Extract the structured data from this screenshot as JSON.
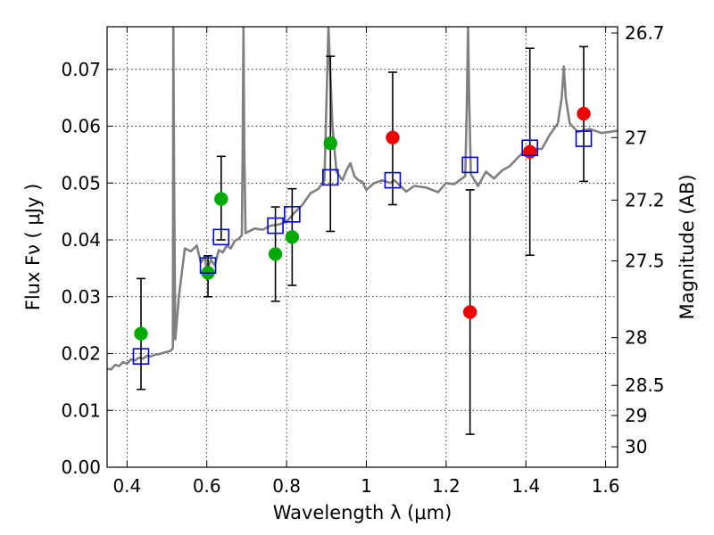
{
  "chart_data": {
    "type": "scatter",
    "title": "",
    "xlabel": "Wavelength  λ (μm)",
    "ylabel": "Flux  Fν  ( μJy )",
    "y2label": "Magnitude (AB)",
    "xlim": [
      0.35,
      1.63
    ],
    "ylim": [
      0.0,
      0.0775
    ],
    "grid": true,
    "x_ticks": [
      0.4,
      0.6,
      0.8,
      1,
      1.2,
      1.4,
      1.6
    ],
    "x_tick_labels": [
      "0.4",
      "0.6",
      "0.8",
      "1",
      "1.2",
      "1.4",
      "1.6"
    ],
    "y_ticks": [
      0,
      0.01,
      0.02,
      0.03,
      0.04,
      0.05,
      0.06,
      0.07
    ],
    "y_tick_labels": [
      "0.00",
      "0.01",
      "0.02",
      "0.03",
      "0.04",
      "0.05",
      "0.06",
      "0.07"
    ],
    "y2_ticks": [
      {
        "label": "26.7",
        "flux": 0.0764
      },
      {
        "label": "27",
        "flux": 0.058
      },
      {
        "label": "27.2",
        "flux": 0.047
      },
      {
        "label": "27.5",
        "flux": 0.0363
      },
      {
        "label": "28",
        "flux": 0.0228
      },
      {
        "label": "28.5",
        "flux": 0.0144
      },
      {
        "label": "29",
        "flux": 0.0091
      },
      {
        "label": "30",
        "flux": 0.0036
      }
    ],
    "colors": {
      "spectrum": "#808080",
      "green_points": "#00aa00",
      "red_points": "#ee0000",
      "model_squares": "#0000cc",
      "errorbars": "#000000",
      "grid": "#000000"
    },
    "series": [
      {
        "kind": "line",
        "color": "spectrum",
        "points": [
          [
            0.35,
            0.0173
          ],
          [
            0.36,
            0.0172
          ],
          [
            0.37,
            0.018
          ],
          [
            0.38,
            0.0178
          ],
          [
            0.39,
            0.0185
          ],
          [
            0.4,
            0.0182
          ],
          [
            0.41,
            0.019
          ],
          [
            0.42,
            0.0188
          ],
          [
            0.43,
            0.0193
          ],
          [
            0.44,
            0.0191
          ],
          [
            0.45,
            0.0196
          ],
          [
            0.46,
            0.0195
          ],
          [
            0.47,
            0.0198
          ],
          [
            0.48,
            0.0199
          ],
          [
            0.49,
            0.0201
          ],
          [
            0.5,
            0.0203
          ],
          [
            0.51,
            0.0205
          ],
          [
            0.515,
            0.021
          ],
          [
            0.516,
            0.0775
          ],
          [
            0.518,
            0.05
          ],
          [
            0.521,
            0.0225
          ],
          [
            0.53,
            0.03
          ],
          [
            0.545,
            0.0385
          ],
          [
            0.56,
            0.038
          ],
          [
            0.575,
            0.039
          ],
          [
            0.585,
            0.036
          ],
          [
            0.595,
            0.037
          ],
          [
            0.6,
            0.0345
          ],
          [
            0.61,
            0.0365
          ],
          [
            0.62,
            0.0355
          ],
          [
            0.63,
            0.0382
          ],
          [
            0.64,
            0.0378
          ],
          [
            0.65,
            0.039
          ],
          [
            0.66,
            0.0385
          ],
          [
            0.67,
            0.0398
          ],
          [
            0.68,
            0.0402
          ],
          [
            0.688,
            0.0408
          ],
          [
            0.69,
            0.056
          ],
          [
            0.692,
            0.0775
          ],
          [
            0.694,
            0.056
          ],
          [
            0.697,
            0.0412
          ],
          [
            0.72,
            0.042
          ],
          [
            0.74,
            0.0418
          ],
          [
            0.76,
            0.0425
          ],
          [
            0.78,
            0.0427
          ],
          [
            0.8,
            0.0432
          ],
          [
            0.82,
            0.0448
          ],
          [
            0.84,
            0.0462
          ],
          [
            0.86,
            0.0482
          ],
          [
            0.88,
            0.049
          ],
          [
            0.895,
            0.0505
          ],
          [
            0.905,
            0.0775
          ],
          [
            0.915,
            0.06
          ],
          [
            0.925,
            0.052
          ],
          [
            0.94,
            0.0505
          ],
          [
            0.95,
            0.0522
          ],
          [
            0.96,
            0.0535
          ],
          [
            0.97,
            0.0512
          ],
          [
            0.98,
            0.0505
          ],
          [
            0.99,
            0.0502
          ],
          [
            1.0,
            0.0488
          ],
          [
            1.02,
            0.05
          ],
          [
            1.04,
            0.0505
          ],
          [
            1.06,
            0.05
          ],
          [
            1.07,
            0.0505
          ],
          [
            1.1,
            0.0485
          ],
          [
            1.12,
            0.0495
          ],
          [
            1.15,
            0.0492
          ],
          [
            1.18,
            0.0484
          ],
          [
            1.2,
            0.05
          ],
          [
            1.22,
            0.0498
          ],
          [
            1.24,
            0.0508
          ],
          [
            1.248,
            0.0512
          ],
          [
            1.252,
            0.064
          ],
          [
            1.255,
            0.0775
          ],
          [
            1.258,
            0.064
          ],
          [
            1.262,
            0.0515
          ],
          [
            1.28,
            0.0495
          ],
          [
            1.3,
            0.052
          ],
          [
            1.32,
            0.0508
          ],
          [
            1.34,
            0.0522
          ],
          [
            1.36,
            0.053
          ],
          [
            1.38,
            0.0545
          ],
          [
            1.4,
            0.0558
          ],
          [
            1.42,
            0.056
          ],
          [
            1.44,
            0.056
          ],
          [
            1.46,
            0.0585
          ],
          [
            1.48,
            0.0605
          ],
          [
            1.49,
            0.065
          ],
          [
            1.495,
            0.0705
          ],
          [
            1.5,
            0.065
          ],
          [
            1.51,
            0.0605
          ],
          [
            1.53,
            0.059
          ],
          [
            1.56,
            0.0595
          ],
          [
            1.59,
            0.0588
          ],
          [
            1.63,
            0.0592
          ]
        ]
      },
      {
        "kind": "points",
        "marker": "circle",
        "color": "green_points",
        "points": [
          {
            "x": 0.435,
            "y": 0.0235,
            "lo": 0.0137,
            "hi": 0.0332
          },
          {
            "x": 0.603,
            "y": 0.0342,
            "lo": 0.03,
            "hi": 0.0372
          },
          {
            "x": 0.636,
            "y": 0.0472,
            "lo": 0.04,
            "hi": 0.0547
          },
          {
            "x": 0.772,
            "y": 0.0375,
            "lo": 0.0292,
            "hi": 0.0458
          },
          {
            "x": 0.814,
            "y": 0.0405,
            "lo": 0.032,
            "hi": 0.049
          },
          {
            "x": 0.91,
            "y": 0.057,
            "lo": 0.0415,
            "hi": 0.0723
          }
        ]
      },
      {
        "kind": "points",
        "marker": "circle",
        "color": "red_points",
        "points": [
          {
            "x": 1.066,
            "y": 0.058,
            "lo": 0.0462,
            "hi": 0.0695
          },
          {
            "x": 1.26,
            "y": 0.0273,
            "lo": 0.0058,
            "hi": 0.0488
          },
          {
            "x": 1.41,
            "y": 0.0555,
            "lo": 0.0373,
            "hi": 0.0737
          },
          {
            "x": 1.545,
            "y": 0.0622,
            "lo": 0.0503,
            "hi": 0.074
          }
        ]
      },
      {
        "kind": "points",
        "marker": "square",
        "color": "model_squares",
        "points": [
          {
            "x": 0.435,
            "y": 0.0195
          },
          {
            "x": 0.603,
            "y": 0.0355
          },
          {
            "x": 0.636,
            "y": 0.0405
          },
          {
            "x": 0.772,
            "y": 0.0425
          },
          {
            "x": 0.814,
            "y": 0.0445
          },
          {
            "x": 0.91,
            "y": 0.051
          },
          {
            "x": 1.066,
            "y": 0.0505
          },
          {
            "x": 1.26,
            "y": 0.0532
          },
          {
            "x": 1.41,
            "y": 0.0562
          },
          {
            "x": 1.545,
            "y": 0.0578
          }
        ]
      }
    ]
  }
}
